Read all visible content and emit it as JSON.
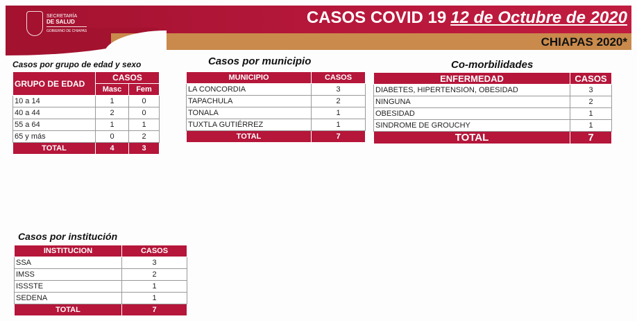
{
  "header": {
    "title": "CASOS COVID 19",
    "date": "12 de Octubre de 2020",
    "subtitle": "CHIAPAS 2020*",
    "logo": {
      "line1": "SECRETARÍA",
      "line2": "DE SALUD",
      "line3": "GOBIERNO DE CHIAPAS"
    },
    "colors": {
      "red": "#b5163a",
      "tan": "#c98a4c"
    }
  },
  "edad": {
    "title": "Casos por grupo de edad y sexo",
    "col_group": "GRUPO DE EDAD",
    "col_casos": "CASOS",
    "col_masc": "Masc",
    "col_fem": "Fem",
    "rows": [
      [
        "10 a 14",
        "1",
        "0"
      ],
      [
        "40 a 44",
        "2",
        "0"
      ],
      [
        "55 a 64",
        "1",
        "1"
      ],
      [
        "65 y más",
        "0",
        "2"
      ]
    ],
    "total": [
      "TOTAL",
      "4",
      "3"
    ]
  },
  "municipio": {
    "title": "Casos por municipio",
    "headers": [
      "MUNICIPIO",
      "CASOS"
    ],
    "rows": [
      [
        "LA CONCORDIA",
        "3"
      ],
      [
        "TAPACHULA",
        "2"
      ],
      [
        "TONALA",
        "1"
      ],
      [
        "TUXTLA GUTIÉRREZ",
        "1"
      ]
    ],
    "total": [
      "TOTAL",
      "7"
    ]
  },
  "comorbilidades": {
    "title": "Co-morbilidades",
    "headers": [
      "ENFERMEDAD",
      "CASOS"
    ],
    "rows": [
      [
        "DIABETES, HIPERTENSION, OBESIDAD",
        "3"
      ],
      [
        "NINGUNA",
        "2"
      ],
      [
        "OBESIDAD",
        "1"
      ],
      [
        "SINDROME DE GROUCHY",
        "1"
      ]
    ],
    "total": [
      "TOTAL",
      "7"
    ]
  },
  "institucion": {
    "title": "Casos por institución",
    "headers": [
      "INSTITUCION",
      "CASOS"
    ],
    "rows": [
      [
        "SSA",
        "3"
      ],
      [
        "IMSS",
        "2"
      ],
      [
        "ISSSTE",
        "1"
      ],
      [
        "SEDENA",
        "1"
      ]
    ],
    "total": [
      "TOTAL",
      "7"
    ]
  }
}
